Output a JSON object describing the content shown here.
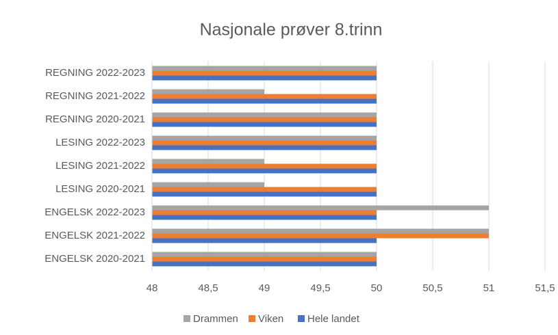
{
  "chart_data": {
    "type": "barh",
    "title": "Nasjonale prøver 8.trinn",
    "categories": [
      "REGNING 2022-2023",
      "REGNING 2021-2022",
      "REGNING 2020-2021",
      "LESING 2022-2023",
      "LESING 2021-2022",
      "LESING 2020-2021",
      "ENGELSK 2022-2023",
      "ENGELSK 2021-2022",
      "ENGELSK 2020-2021"
    ],
    "series": [
      {
        "name": "Drammen",
        "color": "#a5a5a5",
        "values": [
          50,
          49,
          50,
          50,
          49,
          49,
          51,
          51,
          50
        ]
      },
      {
        "name": "Viken",
        "color": "#ed7d31",
        "values": [
          50,
          50,
          50,
          50,
          50,
          50,
          50,
          51,
          50
        ]
      },
      {
        "name": "Hele landet",
        "color": "#4472c4",
        "values": [
          50,
          50,
          50,
          50,
          50,
          50,
          50,
          50,
          50
        ]
      }
    ],
    "xlim": [
      48,
      51.5
    ],
    "xticks": [
      48,
      {
        "value": 48.5,
        "label": "48,5"
      },
      49,
      {
        "value": 49.5,
        "label": "49,5"
      },
      50,
      {
        "value": 50.5,
        "label": "50,5"
      },
      51,
      {
        "value": 51.5,
        "label": "51,5"
      }
    ],
    "grid": true,
    "legend": "bottom"
  }
}
